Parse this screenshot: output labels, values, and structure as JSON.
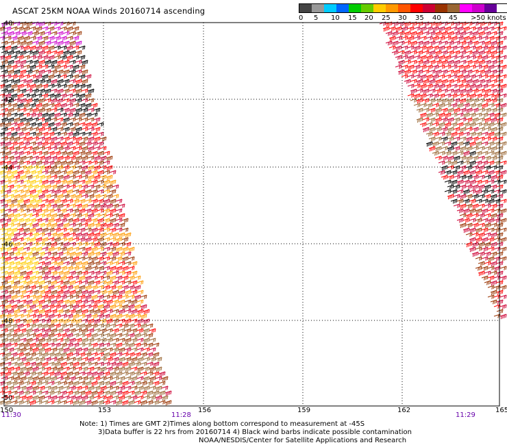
{
  "title": "ASCAT 25KM NOAA Winds 20160714 ascending",
  "legend": {
    "colors": [
      "#444444",
      "#999999",
      "#00ccff",
      "#0066ff",
      "#00cc00",
      "#66cc00",
      "#ffcc00",
      "#ff9900",
      "#ff5500",
      "#ff0000",
      "#cc0033",
      "#993300",
      "#996633",
      "#ff00ff",
      "#cc00cc",
      "#660099"
    ],
    "labels": [
      "0",
      "5",
      "10",
      "15",
      "20",
      "25",
      "30",
      "35",
      "40",
      "45",
      ">50 knots"
    ]
  },
  "axes": {
    "x_labels": [
      "150",
      "153",
      "156",
      "159",
      "162",
      "165"
    ],
    "y_labels": [
      "-40",
      "-42",
      "-44",
      "-46",
      "-48",
      "-50"
    ]
  },
  "times": {
    "left": "11:30",
    "middle": "11:28",
    "right": "11:29"
  },
  "notes": {
    "line1": "Note: 1) Times are GMT 2)Times along bottom correspond to measurement at -45S",
    "line2": "3)Data buffer is 22 hrs from 20160714 4) Black wind barbs indicate possible contamination",
    "line3": "NOAA/NESDIS/Center for Satellite Applications and Research"
  },
  "swaths": [
    {
      "name": "west-swath",
      "dominant_speeds": "25-50 knots",
      "colors": [
        "#cc0033",
        "#ff0000",
        "#993300",
        "#ff9900",
        "#ffcc00",
        "#cc00cc",
        "#996633",
        "#000000"
      ]
    },
    {
      "name": "east-swath",
      "dominant_speeds": "25-45 knots",
      "colors": [
        "#ff0000",
        "#cc0033",
        "#996633",
        "#993300",
        "#000000"
      ]
    }
  ]
}
